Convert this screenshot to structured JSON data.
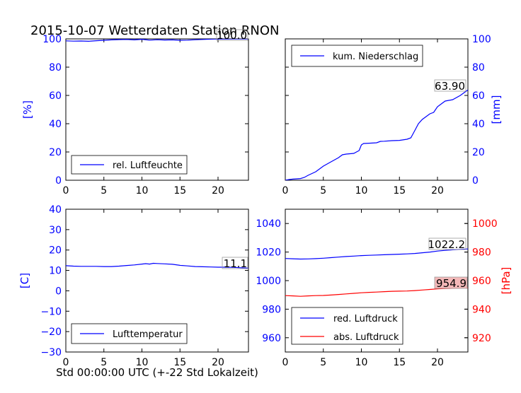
{
  "figure": {
    "title": "2015-10-07 Wetterdaten Station RNON",
    "xlabel": "Std 00:00:00 UTC (+-22 Std Lokalzeit)"
  },
  "colors": {
    "blue": "#0000ff",
    "red": "#ff0000",
    "axis": "#000000",
    "value_box_red_fill": "#f4b8b8"
  },
  "chart_data": [
    {
      "id": "humidity",
      "type": "line",
      "xlim": [
        0,
        24
      ],
      "ylim": [
        0,
        100
      ],
      "xticks": [
        "0",
        "5",
        "10",
        "15",
        "20"
      ],
      "yticks": [
        "0",
        "20",
        "40",
        "60",
        "80",
        "100"
      ],
      "ylabel": "[%]",
      "legend": {
        "label": "rel. Luftfeuchte",
        "placement": "lower-left"
      },
      "value_label": "100.0",
      "series": [
        {
          "name": "rel. Luftfeuchte",
          "color": "#0000ff",
          "x": [
            0,
            1,
            2,
            3,
            4,
            5,
            6,
            7,
            8,
            9,
            10,
            11,
            12,
            13,
            14,
            15,
            16,
            17,
            18,
            19,
            20,
            21,
            22,
            23,
            24
          ],
          "y": [
            98.6,
            98.4,
            98.5,
            98.3,
            98.7,
            99.0,
            99.3,
            99.5,
            99.6,
            99.3,
            99.7,
            99.1,
            99.4,
            99.2,
            99.3,
            99.0,
            99.1,
            99.4,
            99.6,
            99.8,
            99.9,
            99.9,
            100.0,
            100.0,
            100.0
          ]
        }
      ]
    },
    {
      "id": "precipitation",
      "type": "line",
      "xlim": [
        0,
        24
      ],
      "ylim": [
        0,
        100
      ],
      "xticks": [
        "0",
        "5",
        "10",
        "15",
        "20"
      ],
      "yticks": [
        "0",
        "20",
        "40",
        "60",
        "80",
        "100"
      ],
      "ylabel": "[mm]",
      "legend": {
        "label": "kum. Niederschlag",
        "placement": "upper-left"
      },
      "value_label": "63.90",
      "series": [
        {
          "name": "kum. Niederschlag",
          "color": "#0000ff",
          "x": [
            0,
            0.5,
            1,
            2,
            2.5,
            3,
            4,
            5,
            6,
            7,
            7.5,
            8,
            9,
            9.7,
            10,
            10.3,
            11,
            12,
            12.5,
            13,
            14,
            15,
            16,
            16.5,
            17,
            17.5,
            18,
            19,
            19.5,
            20,
            20.5,
            21,
            22,
            23,
            24
          ],
          "y": [
            0,
            0.5,
            0.8,
            1.2,
            2,
            3.5,
            6,
            10,
            13,
            16,
            18,
            18.5,
            19,
            21,
            25,
            26,
            26.2,
            26.5,
            27.5,
            27.6,
            28,
            28.2,
            29,
            30,
            35,
            40,
            43,
            47,
            48,
            52,
            54,
            56,
            57,
            60,
            63.9
          ]
        }
      ]
    },
    {
      "id": "temperature",
      "type": "line",
      "xlim": [
        0,
        24
      ],
      "ylim": [
        -30,
        40
      ],
      "xticks": [
        "0",
        "5",
        "10",
        "15",
        "20"
      ],
      "yticks": [
        "−30",
        "−20",
        "−10",
        "0",
        "10",
        "20",
        "30",
        "40"
      ],
      "ylabel": "[C]",
      "legend": {
        "label": "Lufttemperatur",
        "placement": "lower-left"
      },
      "value_label": "11.1",
      "series": [
        {
          "name": "Lufttemperatur",
          "color": "#0000ff",
          "x": [
            0,
            1,
            2,
            3,
            4,
            5,
            6,
            7,
            8,
            9,
            10,
            10.5,
            11,
            11.5,
            12,
            13,
            14,
            15,
            16,
            17,
            18,
            19,
            20,
            21,
            22,
            23,
            24
          ],
          "y": [
            12.3,
            12.1,
            12.0,
            12.0,
            12.0,
            11.9,
            11.9,
            12.1,
            12.4,
            12.7,
            13.1,
            13.3,
            13.1,
            13.5,
            13.4,
            13.2,
            13.0,
            12.5,
            12.2,
            11.9,
            11.8,
            11.7,
            11.6,
            11.6,
            11.5,
            11.3,
            11.1
          ]
        }
      ]
    },
    {
      "id": "pressure",
      "type": "line",
      "xlim": [
        0,
        24
      ],
      "ylim": [
        950,
        1050
      ],
      "y2lim": [
        910,
        1010
      ],
      "xticks": [
        "0",
        "5",
        "10",
        "15",
        "20"
      ],
      "yticks": [
        "960",
        "980",
        "1000",
        "1020",
        "1040"
      ],
      "y2ticks": [
        "920",
        "940",
        "960",
        "980",
        "1000"
      ],
      "ylabel": "",
      "y2label": "[hPa]",
      "legend": {
        "placement": "lower-left",
        "entries": [
          "red. Luftdruck",
          "abs. Luftdruck"
        ]
      },
      "value_labels": [
        "1022.2",
        "954.9"
      ],
      "series": [
        {
          "name": "red. Luftdruck",
          "axis": "left",
          "color": "#0000ff",
          "x": [
            0,
            1,
            2,
            3,
            4,
            5,
            6,
            7,
            8,
            9,
            10,
            11,
            12,
            13,
            14,
            15,
            16,
            17,
            18,
            19,
            20,
            21,
            22,
            23,
            24
          ],
          "y": [
            1015.5,
            1015.3,
            1015.1,
            1015.2,
            1015.4,
            1015.7,
            1016.1,
            1016.5,
            1016.9,
            1017.2,
            1017.5,
            1017.7,
            1017.9,
            1018.1,
            1018.3,
            1018.5,
            1018.7,
            1019.0,
            1019.5,
            1020.0,
            1020.7,
            1021.2,
            1021.6,
            1021.9,
            1022.2
          ]
        },
        {
          "name": "abs. Luftdruck",
          "axis": "right",
          "color": "#ff0000",
          "x": [
            0,
            1,
            2,
            3,
            4,
            5,
            6,
            7,
            8,
            9,
            10,
            11,
            12,
            13,
            14,
            15,
            16,
            17,
            18,
            19,
            20,
            21,
            22,
            23,
            24
          ],
          "y": [
            949.5,
            949.3,
            949.0,
            949.3,
            949.5,
            949.6,
            949.9,
            950.3,
            950.7,
            951.1,
            951.5,
            951.8,
            952.0,
            952.3,
            952.5,
            952.6,
            952.7,
            953.0,
            953.4,
            953.8,
            954.2,
            954.5,
            954.6,
            954.8,
            954.9
          ]
        }
      ]
    }
  ]
}
